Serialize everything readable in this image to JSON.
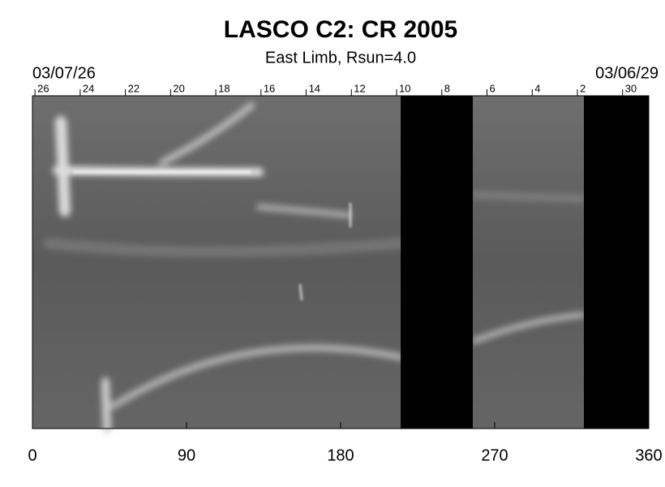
{
  "chart_data": {
    "type": "synoptic",
    "title": "LASCO C2: CR 2005",
    "subtitle": "East Limb, Rsun=4.0",
    "date_left": "03/07/26",
    "date_right": "03/06/29",
    "xlim": [
      0,
      360
    ],
    "xticks": [
      0,
      90,
      180,
      270,
      360
    ],
    "top_ticks": [
      {
        "value": 1.5,
        "label": "26"
      },
      {
        "value": 27.9,
        "label": "24"
      },
      {
        "value": 54.3,
        "label": "22"
      },
      {
        "value": 80.7,
        "label": "20"
      },
      {
        "value": 107.1,
        "label": "18"
      },
      {
        "value": 133.5,
        "label": "16"
      },
      {
        "value": 159.9,
        "label": "14"
      },
      {
        "value": 186.3,
        "label": "12"
      },
      {
        "value": 212.7,
        "label": "10"
      },
      {
        "value": 239.1,
        "label": "8"
      },
      {
        "value": 265.5,
        "label": "6"
      },
      {
        "value": 291.9,
        "label": "4"
      },
      {
        "value": 318.3,
        "label": "2"
      },
      {
        "value": 344.7,
        "label": "30"
      }
    ],
    "gaps": [
      [
        215.1,
        257.2
      ],
      [
        322.1,
        360
      ]
    ],
    "gap_color": "#000000"
  }
}
